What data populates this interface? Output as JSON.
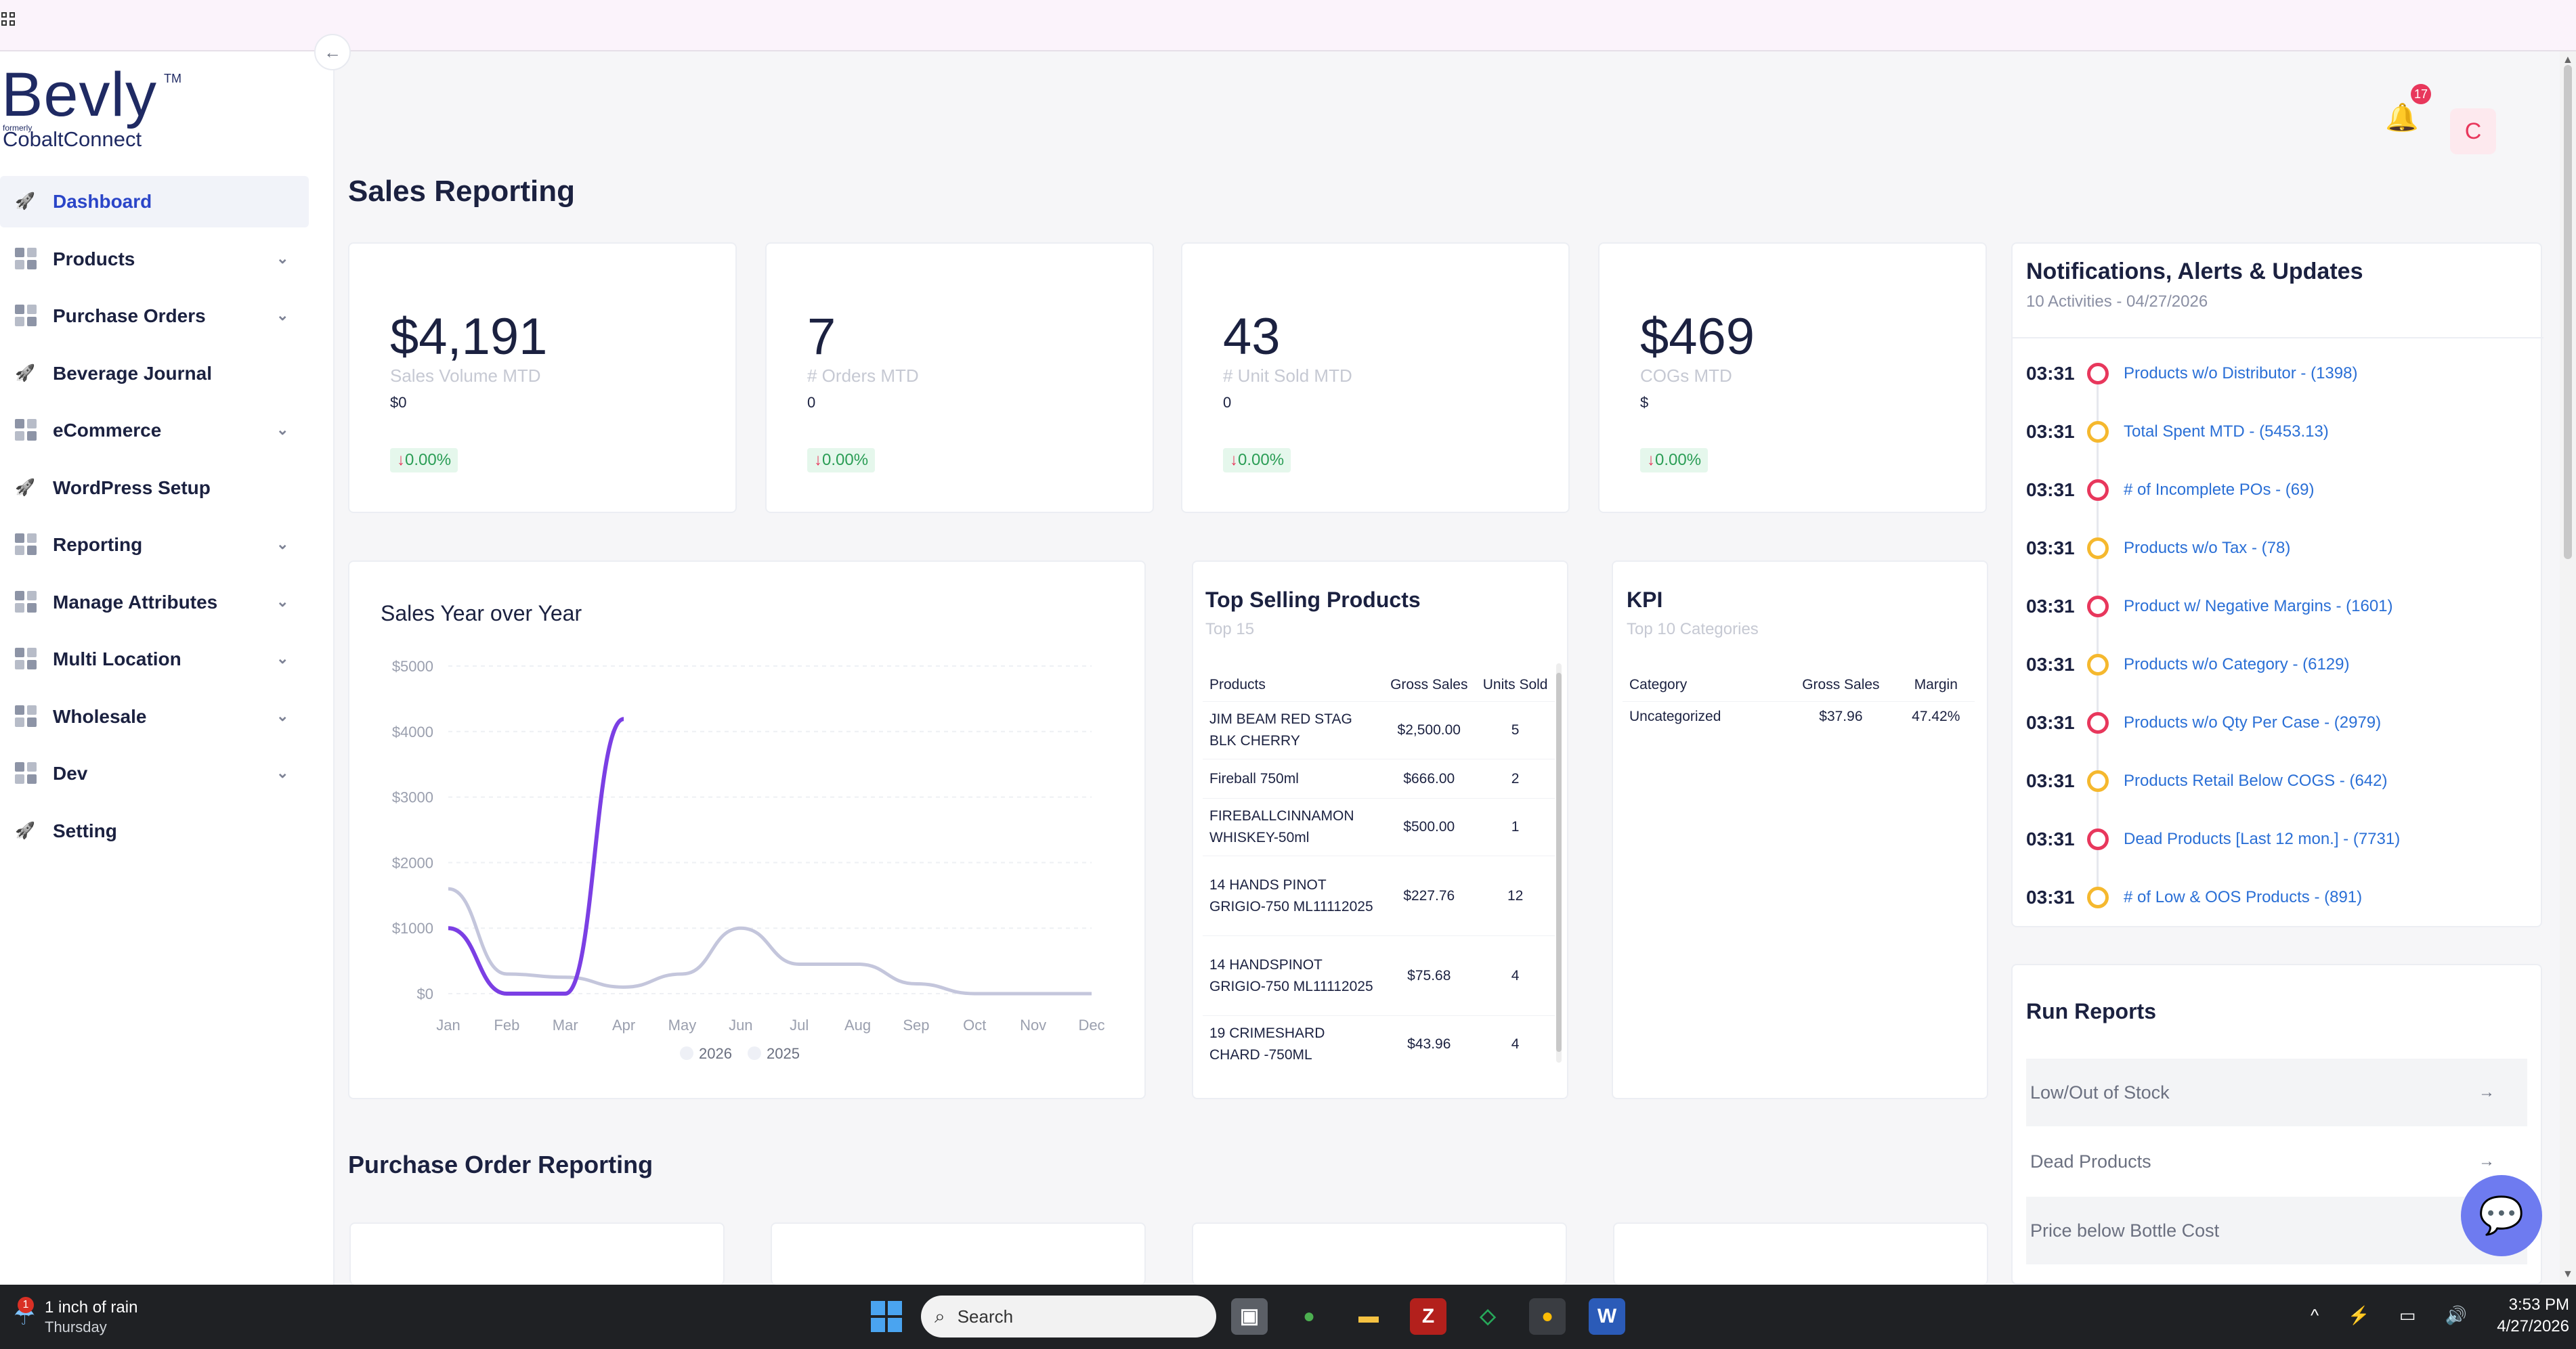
{
  "sidebar": {
    "logo": {
      "name": "Bevly",
      "tm": "TM",
      "formerly": "formerly",
      "former_name": "CobaltConnect"
    },
    "collapse_icon": "←",
    "items": [
      {
        "label": "Dashboard",
        "icon": "rocket-icon",
        "active": true,
        "chevron": false
      },
      {
        "label": "Products",
        "icon": "grid-icon",
        "chevron": true
      },
      {
        "label": "Purchase Orders",
        "icon": "grid-icon",
        "chevron": true
      },
      {
        "label": "Beverage Journal",
        "icon": "rocket-icon",
        "chevron": false
      },
      {
        "label": "eCommerce",
        "icon": "grid-icon",
        "chevron": true
      },
      {
        "label": "WordPress Setup",
        "icon": "rocket-icon",
        "chevron": false
      },
      {
        "label": "Reporting",
        "icon": "grid-icon",
        "chevron": true
      },
      {
        "label": "Manage Attributes",
        "icon": "grid-icon",
        "chevron": true
      },
      {
        "label": "Multi Location",
        "icon": "grid-icon",
        "chevron": true
      },
      {
        "label": "Wholesale",
        "icon": "grid-icon",
        "chevron": true
      },
      {
        "label": "Dev",
        "icon": "grid-icon",
        "chevron": true
      },
      {
        "label": "Setting",
        "icon": "rocket-icon",
        "chevron": false
      }
    ]
  },
  "header": {
    "notification_count": "17",
    "avatar_letter": "C"
  },
  "page_title": "Sales Reporting",
  "stats": [
    {
      "value": "$4,191",
      "label": "Sales Volume MTD",
      "sub": "$0",
      "change": "0.00%"
    },
    {
      "value": "7",
      "label": "# Orders MTD",
      "sub": "0",
      "change": "0.00%"
    },
    {
      "value": "43",
      "label": "# Unit Sold MTD",
      "sub": "0",
      "change": "0.00%"
    },
    {
      "value": "$469",
      "label": "COGs MTD",
      "sub": "$",
      "change": "0.00%"
    }
  ],
  "chart_title": "Sales Year over Year",
  "chart_data": {
    "type": "line",
    "title": "Sales Year over Year",
    "categories": [
      "Jan",
      "Feb",
      "Mar",
      "Apr",
      "May",
      "Jun",
      "Jul",
      "Aug",
      "Sep",
      "Oct",
      "Nov",
      "Dec"
    ],
    "y_ticks": [
      "$5000",
      "$4000",
      "$3000",
      "$2000",
      "$1000",
      "$0"
    ],
    "ylim": [
      0,
      5000
    ],
    "series": [
      {
        "name": "2026",
        "color": "#7b3fe4",
        "values": [
          1000,
          0,
          0,
          4191,
          null,
          null,
          null,
          null,
          null,
          null,
          null,
          null
        ]
      },
      {
        "name": "2025",
        "color": "#c4c6dc",
        "values": [
          1600,
          300,
          250,
          100,
          300,
          1000,
          450,
          450,
          150,
          0,
          0,
          0
        ]
      }
    ],
    "legend": "bottom",
    "grid": true
  },
  "top_selling": {
    "title": "Top Selling Products",
    "subtitle": "Top 15",
    "columns": [
      "Products",
      "Gross Sales",
      "Units Sold"
    ],
    "rows": [
      {
        "product": "JIM BEAM RED STAG BLK CHERRY",
        "gross": "$2,500.00",
        "units": "5"
      },
      {
        "product": "Fireball 750ml",
        "gross": "$666.00",
        "units": "2"
      },
      {
        "product": "FIREBALLCINNAMON WHISKEY-50ml",
        "gross": "$500.00",
        "units": "1"
      },
      {
        "product": "14 HANDS PINOT GRIGIO-750 ML11112025",
        "gross": "$227.76",
        "units": "12"
      },
      {
        "product": "14 HANDSPINOT GRIGIO-750 ML11112025",
        "gross": "$75.68",
        "units": "4"
      },
      {
        "product": "19 CRIMESHARD CHARD -750ML",
        "gross": "$43.96",
        "units": "4"
      }
    ]
  },
  "kpi": {
    "title": "KPI",
    "subtitle": "Top 10 Categories",
    "columns": [
      "Category",
      "Gross Sales",
      "Margin"
    ],
    "rows": [
      {
        "category": "Uncategorized",
        "gross": "$37.96",
        "margin": "47.42%"
      }
    ]
  },
  "notifications": {
    "title": "Notifications, Alerts & Updates",
    "subtitle": "10 Activities - 04/27/2026",
    "items": [
      {
        "time": "03:31",
        "text": "Products w/o Distributor - (1398)",
        "color": "#e8375c"
      },
      {
        "time": "03:31",
        "text": "Total Spent MTD - (5453.13)",
        "color": "#f5b82e"
      },
      {
        "time": "03:31",
        "text": "# of Incomplete POs - (69)",
        "color": "#e8375c"
      },
      {
        "time": "03:31",
        "text": "Products w/o Tax - (78)",
        "color": "#f5b82e"
      },
      {
        "time": "03:31",
        "text": "Product w/ Negative Margins - (1601)",
        "color": "#e8375c"
      },
      {
        "time": "03:31",
        "text": "Products w/o Category - (6129)",
        "color": "#f5b82e"
      },
      {
        "time": "03:31",
        "text": "Products w/o Qty Per Case - (2979)",
        "color": "#e8375c"
      },
      {
        "time": "03:31",
        "text": "Products Retail Below COGS - (642)",
        "color": "#f5b82e"
      },
      {
        "time": "03:31",
        "text": "Dead Products [Last 12 mon.] - (7731)",
        "color": "#e8375c"
      },
      {
        "time": "03:31",
        "text": "# of Low & OOS Products - (891)",
        "color": "#f5b82e"
      }
    ]
  },
  "run_reports": {
    "title": "Run Reports",
    "items": [
      "Low/Out of Stock",
      "Dead Products",
      "Price below Bottle Cost"
    ]
  },
  "po_title": "Purchase Order Reporting",
  "taskbar": {
    "weather_line1": "1 inch of rain",
    "weather_line2": "Thursday",
    "weather_badge": "1",
    "search_label": "Search",
    "time": "3:53 PM",
    "date": "4/27/2026"
  }
}
